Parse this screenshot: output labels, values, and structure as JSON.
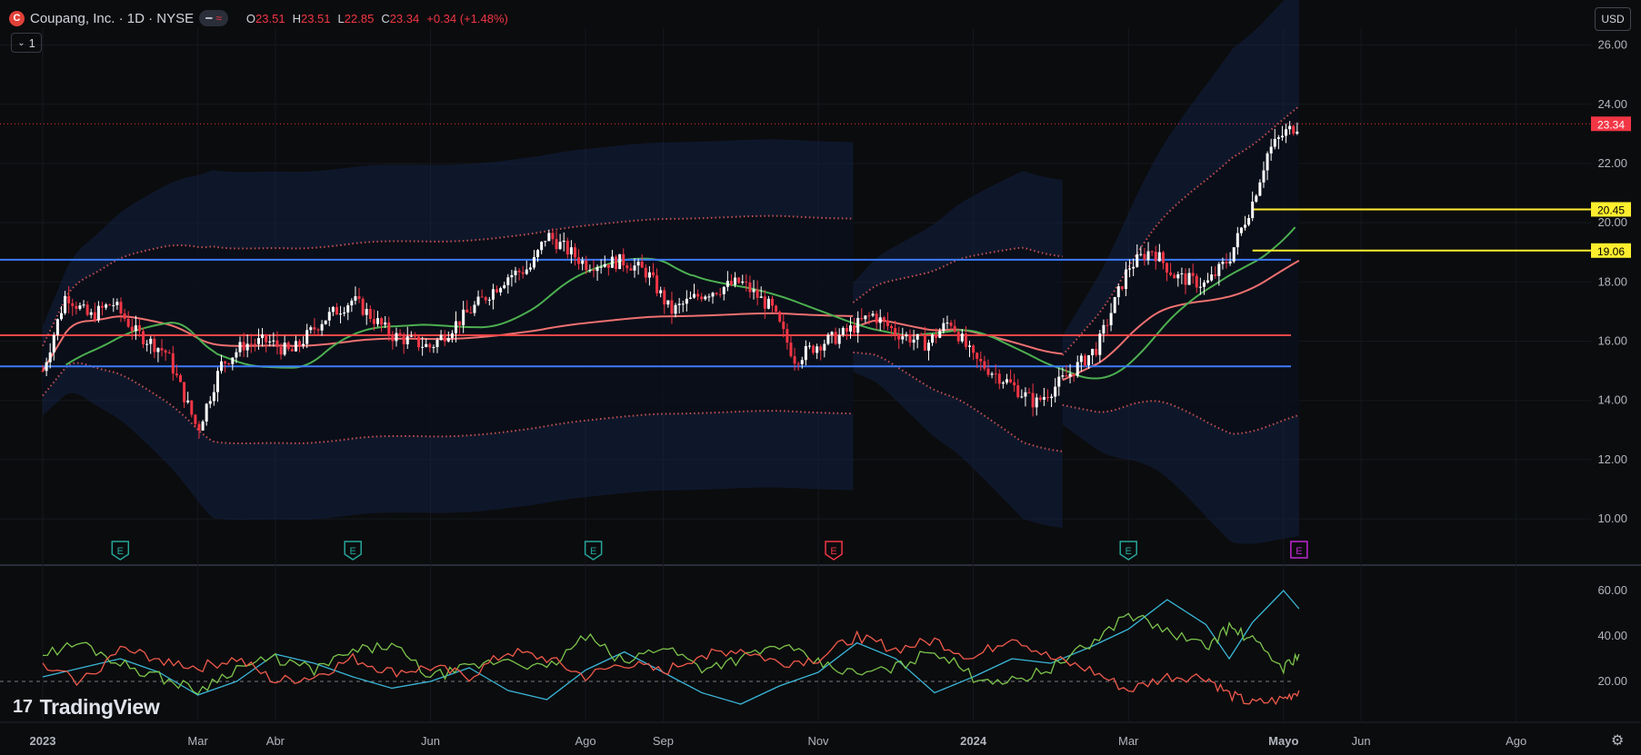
{
  "header": {
    "symbol_title": "Coupang, Inc. · 1D · NYSE",
    "logo_letter": "C",
    "pill_glyph": "≈",
    "o_label": "O",
    "o_value": "23.51",
    "h_label": "H",
    "h_value": "23.51",
    "l_label": "L",
    "l_value": "22.85",
    "c_label": "C",
    "c_value": "23.34",
    "change": "+0.34 (+1.48%)",
    "subpane_count": "1",
    "currency": "USD"
  },
  "brand": {
    "name": "TradingView",
    "mark": "17"
  },
  "colors": {
    "background": "#0b0c0e",
    "up_candle": "#ffffff",
    "down_candle": "#f23645",
    "blue_line": "#3d7bff",
    "red_line": "#f04848",
    "yellow_line": "#ffee2e",
    "green_ma": "#4caf50",
    "band_fill": "#132142",
    "adx_cyan": "#3ab7d8",
    "adx_green": "#7cc44b",
    "adx_red": "#f05a4b",
    "earnings_past": "#26a69a",
    "earnings_miss": "#f23645",
    "earnings_upcoming": "#c026d3"
  },
  "chart_data": [
    {
      "type": "candlestick",
      "title": "Coupang, Inc. · 1D · NYSE",
      "x_ticks": [
        "2023",
        "Mar",
        "Abr",
        "Jun",
        "Ago",
        "Sep",
        "Nov",
        "2024",
        "Mar",
        "Mayo",
        "Jun",
        "Ago"
      ],
      "x_tick_month_index": [
        0,
        2,
        3,
        5,
        7,
        8,
        10,
        12,
        14,
        16,
        17,
        19
      ],
      "y_ticks": [
        "26.00",
        "24.00",
        "22.00",
        "20.00",
        "18.00",
        "16.00",
        "14.00",
        "12.00",
        "10.00"
      ],
      "ylim": [
        8.5,
        26.6
      ],
      "last_price_label": "23.34",
      "horizontal_levels": [
        {
          "label": "20.45",
          "value": 20.45,
          "color": "yellow",
          "from_month": 15.6
        },
        {
          "label": "19.06",
          "value": 19.06,
          "color": "yellow",
          "from_month": 15.6
        },
        {
          "label": "",
          "value": 18.75,
          "color": "blue"
        },
        {
          "label": "",
          "value": 16.2,
          "color": "red"
        },
        {
          "label": "",
          "value": 15.15,
          "color": "blue"
        }
      ],
      "price_path_month_index": [
        0,
        0.3,
        0.6,
        0.9,
        1.2,
        1.6,
        2.0,
        2.3,
        2.6,
        2.9,
        3.2,
        3.6,
        4.0,
        4.5,
        5.0,
        5.5,
        6.0,
        6.3,
        6.5,
        7.0,
        7.5,
        7.8,
        8.1,
        8.5,
        9.0,
        9.4,
        9.7,
        10.0,
        10.3,
        10.7,
        11.0,
        11.4,
        11.7,
        12.0,
        12.4,
        12.8,
        13.2,
        13.6,
        14.0,
        14.3,
        14.6,
        15.0,
        15.3,
        15.6,
        15.8,
        16.0,
        16.2
      ],
      "price_path_close": [
        15.0,
        17.6,
        16.8,
        17.3,
        16.3,
        15.6,
        13.0,
        15.2,
        15.9,
        16.0,
        15.6,
        16.7,
        17.4,
        16.2,
        15.8,
        17.0,
        18.2,
        18.5,
        19.6,
        18.6,
        18.7,
        18.3,
        17.0,
        17.6,
        18.0,
        17.1,
        15.4,
        15.9,
        16.2,
        16.9,
        16.3,
        15.9,
        16.7,
        15.4,
        14.7,
        13.9,
        14.8,
        15.8,
        18.5,
        19.1,
        18.2,
        17.9,
        18.8,
        20.7,
        22.4,
        23.0,
        23.34
      ],
      "earnings_markers": [
        {
          "month_index": 1.0,
          "kind": "past",
          "letter": "E"
        },
        {
          "month_index": 4.0,
          "kind": "past",
          "letter": "E"
        },
        {
          "month_index": 7.1,
          "kind": "past",
          "letter": "E"
        },
        {
          "month_index": 10.2,
          "kind": "miss",
          "letter": "E"
        },
        {
          "month_index": 14.0,
          "kind": "past",
          "letter": "E"
        },
        {
          "month_index": 16.2,
          "kind": "upcoming",
          "letter": "E"
        }
      ]
    },
    {
      "type": "line",
      "y_ticks": [
        "60.00",
        "40.00",
        "20.00"
      ],
      "ylim": [
        4,
        68
      ],
      "reference_level": 20,
      "series": [
        {
          "color": "cyan",
          "month_index": [
            0,
            0.5,
            1,
            1.5,
            2,
            2.5,
            3,
            3.5,
            4,
            4.5,
            5,
            5.5,
            6,
            6.5,
            7,
            7.5,
            8,
            8.5,
            9,
            9.5,
            10,
            10.5,
            11,
            11.5,
            12,
            12.5,
            13,
            13.5,
            14,
            14.5,
            15,
            15.3,
            15.6,
            16.0,
            16.2
          ],
          "values": [
            22,
            26,
            30,
            24,
            14,
            20,
            32,
            28,
            22,
            17,
            20,
            26,
            16,
            12,
            25,
            33,
            24,
            15,
            10,
            18,
            24,
            37,
            30,
            15,
            22,
            30,
            28,
            35,
            43,
            56,
            45,
            30,
            46,
            60,
            52
          ]
        },
        {
          "color": "green",
          "month_index": [
            0,
            0.5,
            1,
            1.5,
            2,
            2.5,
            3,
            3.5,
            4,
            4.5,
            5,
            5.5,
            6,
            6.5,
            7,
            7.5,
            8,
            8.5,
            9,
            9.5,
            10,
            10.5,
            11,
            11.5,
            12,
            12.5,
            13,
            13.5,
            14,
            14.5,
            15,
            15.3,
            15.6,
            16.0,
            16.2
          ],
          "values": [
            32,
            37,
            28,
            22,
            16,
            26,
            30,
            25,
            33,
            36,
            22,
            26,
            30,
            25,
            40,
            28,
            36,
            26,
            30,
            36,
            28,
            23,
            26,
            34,
            22,
            20,
            26,
            36,
            50,
            42,
            35,
            44,
            38,
            26,
            32
          ]
        },
        {
          "color": "red",
          "month_index": [
            0,
            0.5,
            1,
            1.5,
            2,
            2.5,
            3,
            3.5,
            4,
            4.5,
            5,
            5.5,
            6,
            6.5,
            7,
            7.5,
            8,
            8.5,
            9,
            9.5,
            10,
            10.5,
            11,
            11.5,
            12,
            12.5,
            13,
            13.5,
            14,
            14.5,
            15,
            15.3,
            15.6,
            16.0,
            16.2
          ],
          "values": [
            26,
            20,
            34,
            30,
            26,
            30,
            20,
            22,
            30,
            24,
            26,
            22,
            33,
            30,
            22,
            28,
            24,
            32,
            34,
            28,
            30,
            40,
            34,
            38,
            30,
            40,
            30,
            25,
            16,
            22,
            22,
            14,
            10,
            12,
            16
          ]
        }
      ]
    }
  ]
}
